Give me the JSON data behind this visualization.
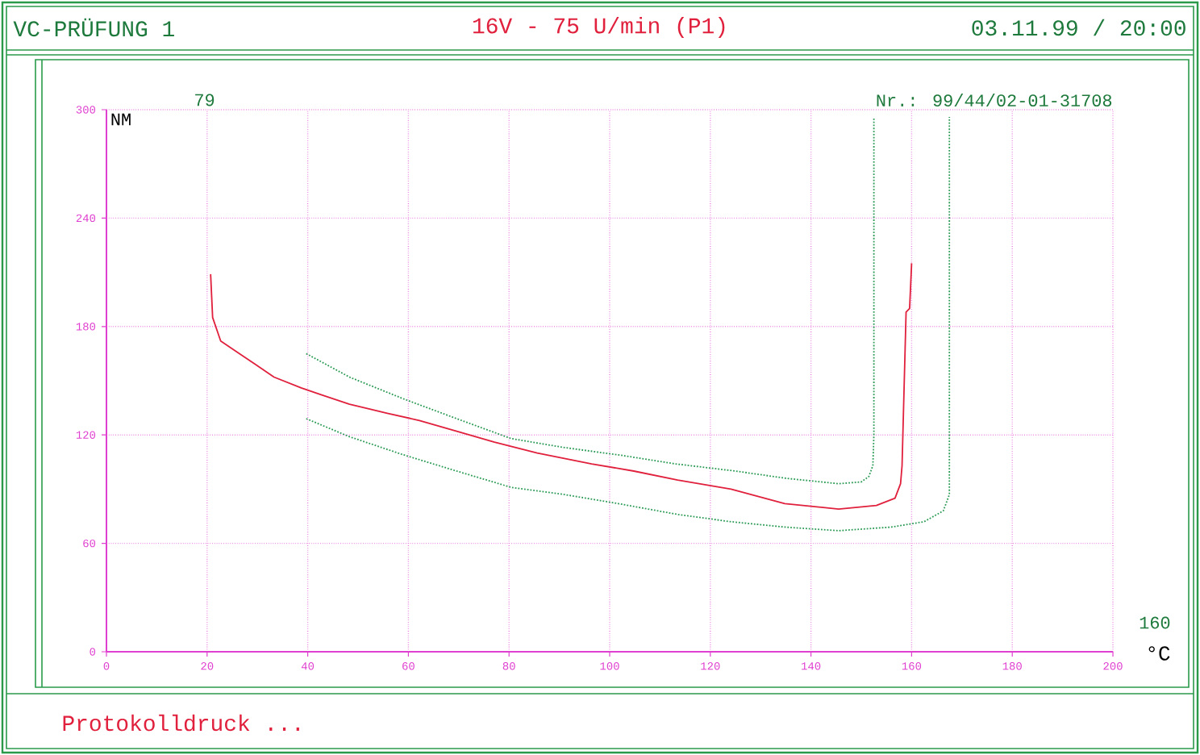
{
  "chart_data": {
    "type": "line",
    "title": "16V - 75 U/min (P1)",
    "xlabel": "°C",
    "ylabel": "NM",
    "annotations": [
      "VC-PRÜFUNG 1",
      "03.11.99 / 20:00",
      "79",
      "Nr.: 99/44/02-01-31708",
      "160",
      "Protokolldruck ..."
    ],
    "xlim": [
      0,
      200
    ],
    "ylim": [
      0,
      300
    ],
    "xticks": [
      0,
      20,
      40,
      60,
      80,
      100,
      120,
      140,
      160,
      180,
      200
    ],
    "yticks": [
      0,
      60,
      120,
      180,
      240,
      300
    ],
    "grid": true,
    "marker": "none",
    "series": [
      {
        "color": "#e0203c",
        "line_style": "solid",
        "x": [
          20.7,
          21.1,
          22.7,
          25.9,
          29.6,
          33.3,
          38.7,
          42.9,
          48.3,
          55.8,
          62.2,
          69.6,
          77.1,
          85.6,
          96.4,
          104.8,
          113.5,
          124.1,
          134.8,
          145.5,
          153.0,
          156.7,
          157.8,
          158.1,
          158.9,
          159.6,
          160.0
        ],
        "values": [
          209,
          185,
          172,
          166,
          159,
          152,
          146,
          142,
          137,
          132,
          128,
          122,
          116,
          110,
          104,
          100,
          95,
          90,
          82,
          79,
          81,
          85,
          93,
          103,
          188,
          190,
          215
        ]
      },
      {
        "color": "#2a9a55",
        "line_style": "dotted",
        "x": [
          39.7,
          48.3,
          59,
          69.6,
          80.4,
          91,
          101.7,
          113,
          125,
          135,
          145.5,
          150,
          151.5,
          152.3,
          152.5,
          152.5
        ],
        "values": [
          165,
          152,
          140,
          129,
          118,
          113,
          109,
          104,
          100,
          96,
          93,
          94,
          97,
          103,
          120,
          296
        ]
      },
      {
        "color": "#2a9a55",
        "line_style": "dotted",
        "x": [
          39.7,
          48.3,
          59,
          69.6,
          80.4,
          91,
          101.7,
          113.5,
          124,
          134.8,
          145.5,
          156,
          162.5,
          166.3,
          167.5,
          167.5
        ],
        "values": [
          129,
          119,
          109,
          100,
          91,
          87,
          82,
          76,
          72,
          69,
          67,
          69,
          72,
          78,
          87,
          296
        ]
      }
    ]
  }
}
